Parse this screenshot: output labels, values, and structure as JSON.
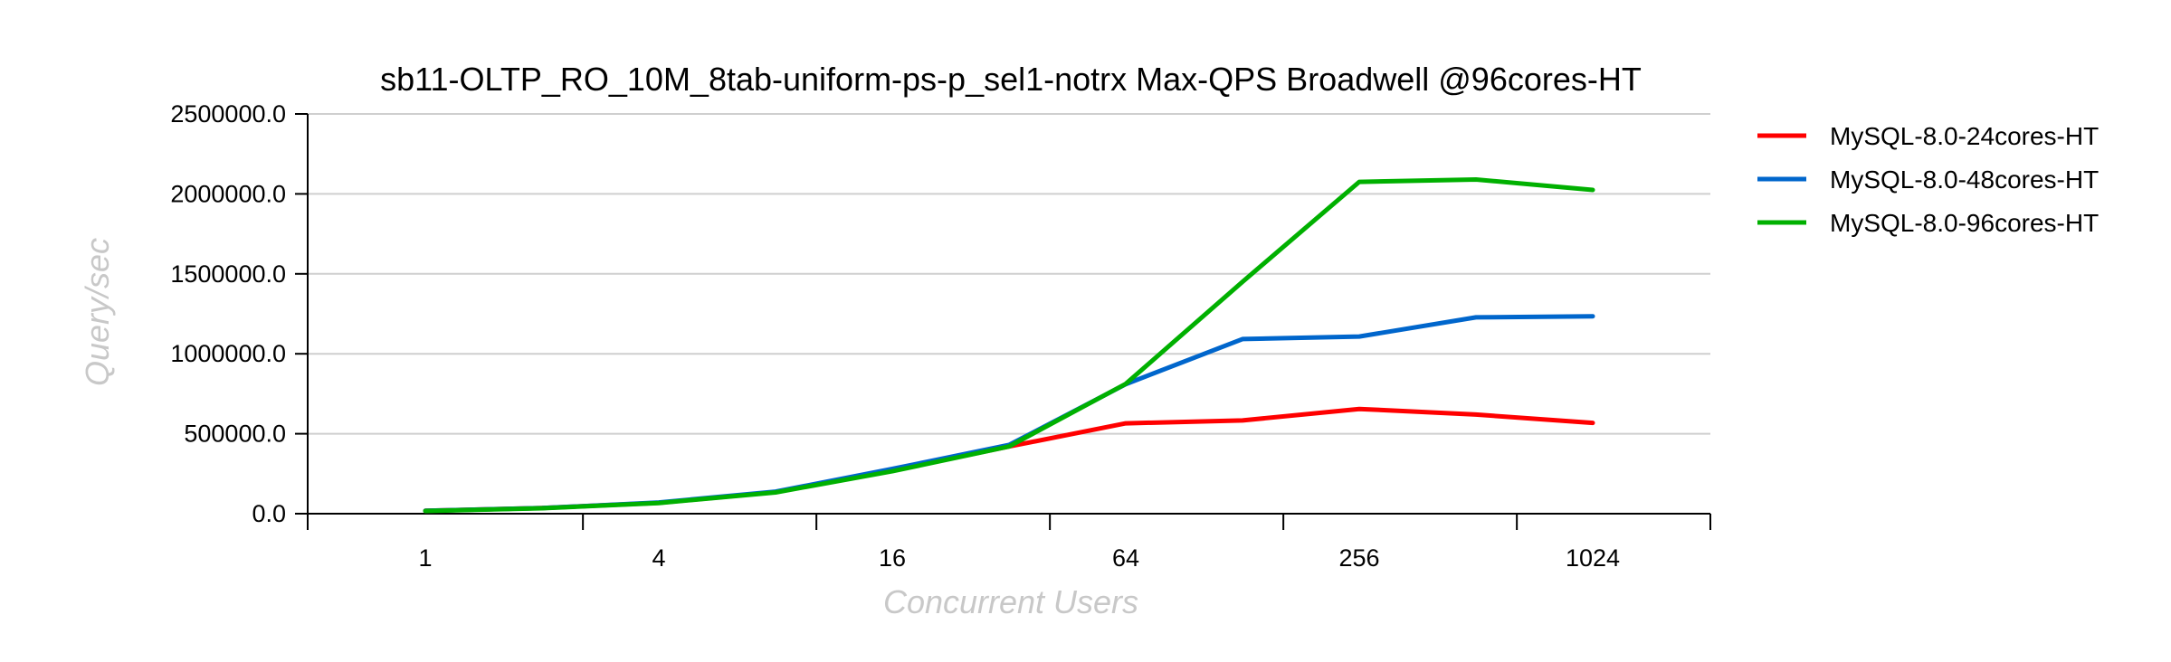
{
  "chart_data": {
    "type": "line",
    "title": "sb11-OLTP_RO_10M_8tab-uniform-ps-p_sel1-notrx Max-QPS Broadwell @96cores-HT",
    "xlabel": "Concurrent Users",
    "ylabel": "Query/sec",
    "x": [
      1,
      2,
      4,
      8,
      16,
      32,
      64,
      128,
      256,
      512,
      1024
    ],
    "x_tick_labels": [
      "1",
      "4",
      "16",
      "64",
      "256",
      "1024"
    ],
    "x_scale": "log2",
    "ylim": [
      0,
      2500000
    ],
    "y_tick_labels": [
      "0.0",
      "500000.0",
      "1000000.0",
      "1500000.0",
      "2000000.0",
      "2500000.0"
    ],
    "grid": true,
    "legend_position": "right",
    "series": [
      {
        "name": "MySQL-8.0-24cores-HT",
        "color": "#ff0000",
        "values": [
          18000,
          35000,
          68000,
          135000,
          270000,
          420000,
          565000,
          583000,
          655000,
          620000,
          568000
        ]
      },
      {
        "name": "MySQL-8.0-48cores-HT",
        "color": "#0066cc",
        "values": [
          18000,
          35000,
          70000,
          138000,
          280000,
          430000,
          810000,
          1092000,
          1108000,
          1228000,
          1235000
        ]
      },
      {
        "name": "MySQL-8.0-96cores-HT",
        "color": "#00b000",
        "values": [
          17000,
          34000,
          67000,
          133000,
          265000,
          420000,
          812000,
          1450000,
          2075000,
          2090000,
          2025000
        ]
      }
    ]
  }
}
